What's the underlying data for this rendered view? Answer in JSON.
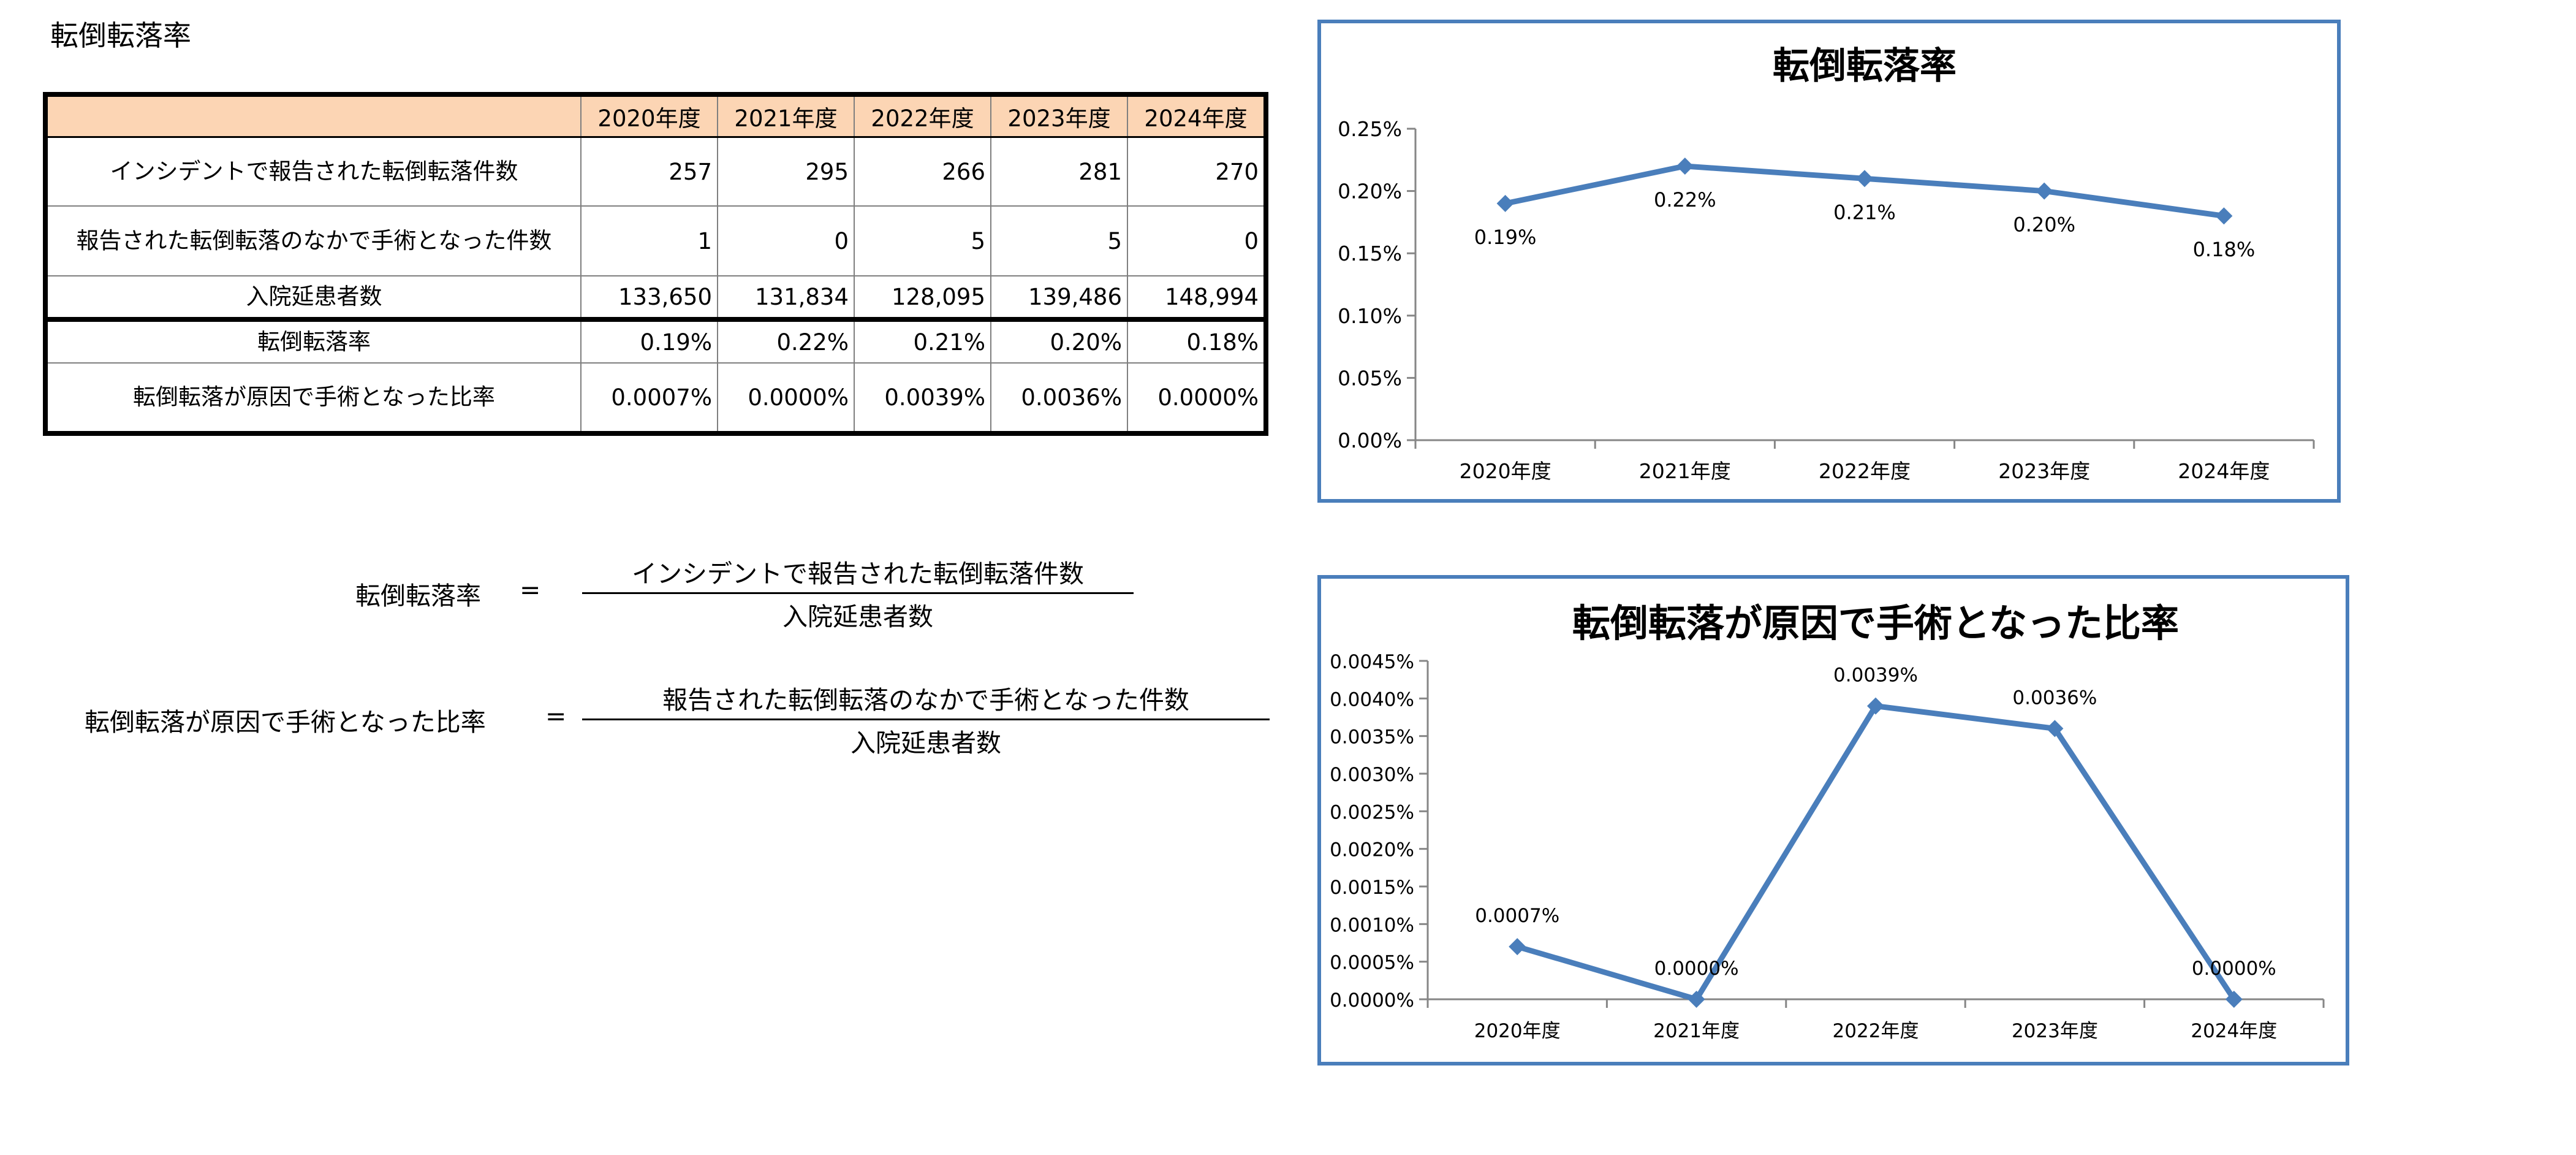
{
  "page_title": "転倒転落率",
  "table": {
    "headers": [
      "",
      "2020年度",
      "2021年度",
      "2022年度",
      "2023年度",
      "2024年度"
    ],
    "rows": [
      {
        "label": "インシデントで報告された転倒転落件数",
        "values": [
          "257",
          "295",
          "266",
          "281",
          "270"
        ]
      },
      {
        "label": "報告された転倒転落のなかで手術となった件数",
        "values": [
          "1",
          "0",
          "5",
          "5",
          "0"
        ]
      },
      {
        "label": "入院延患者数",
        "values": [
          "133,650",
          "131,834",
          "128,095",
          "139,486",
          "148,994"
        ]
      },
      {
        "label": "転倒転落率",
        "values": [
          "0.19%",
          "0.22%",
          "0.21%",
          "0.20%",
          "0.18%"
        ]
      },
      {
        "label": "転倒転落が原因で手術となった比率",
        "values": [
          "0.0007%",
          "0.0000%",
          "0.0039%",
          "0.0036%",
          "0.0000%"
        ]
      }
    ]
  },
  "formulas": [
    {
      "label": "転倒転落率",
      "equals": "=",
      "numerator": "インシデントで報告された転倒転落件数",
      "denominator": "入院延患者数"
    },
    {
      "label": "転倒転落が原因で手術となった比率",
      "equals": "=",
      "numerator": "報告された転倒転落のなかで手術となった件数",
      "denominator": "入院延患者数"
    }
  ],
  "chart_data": [
    {
      "type": "line",
      "title": "転倒転落率",
      "categories": [
        "2020年度",
        "2021年度",
        "2022年度",
        "2023年度",
        "2024年度"
      ],
      "series": [
        {
          "values": [
            0.19,
            0.22,
            0.21,
            0.2,
            0.18
          ],
          "color": "#4a7ebb"
        }
      ],
      "data_labels": [
        "0.19%",
        "0.22%",
        "0.21%",
        "0.20%",
        "0.18%"
      ],
      "ylim": [
        0,
        0.25
      ],
      "yticks": [
        0,
        0.05,
        0.1,
        0.15,
        0.2,
        0.25
      ],
      "ytick_labels": [
        "0.00%",
        "0.05%",
        "0.10%",
        "0.15%",
        "0.20%",
        "0.25%"
      ],
      "xlabel": "",
      "ylabel": "",
      "grid": false,
      "legend": "none"
    },
    {
      "type": "line",
      "title": "転倒転落が原因で手術となった比率",
      "categories": [
        "2020年度",
        "2021年度",
        "2022年度",
        "2023年度",
        "2024年度"
      ],
      "series": [
        {
          "values": [
            0.0007,
            0.0,
            0.0039,
            0.0036,
            0.0
          ],
          "color": "#4a7ebb"
        }
      ],
      "data_labels": [
        "0.0007%",
        "0.0000%",
        "0.0039%",
        "0.0036%",
        "0.0000%"
      ],
      "ylim": [
        0,
        0.0045
      ],
      "yticks": [
        0,
        0.0005,
        0.001,
        0.0015,
        0.002,
        0.0025,
        0.003,
        0.0035,
        0.004,
        0.0045
      ],
      "ytick_labels": [
        "0.0000%",
        "0.0005%",
        "0.0010%",
        "0.0015%",
        "0.0020%",
        "0.0025%",
        "0.0030%",
        "0.0035%",
        "0.0040%",
        "0.0045%"
      ],
      "xlabel": "",
      "ylabel": "",
      "grid": false,
      "legend": "none"
    }
  ]
}
